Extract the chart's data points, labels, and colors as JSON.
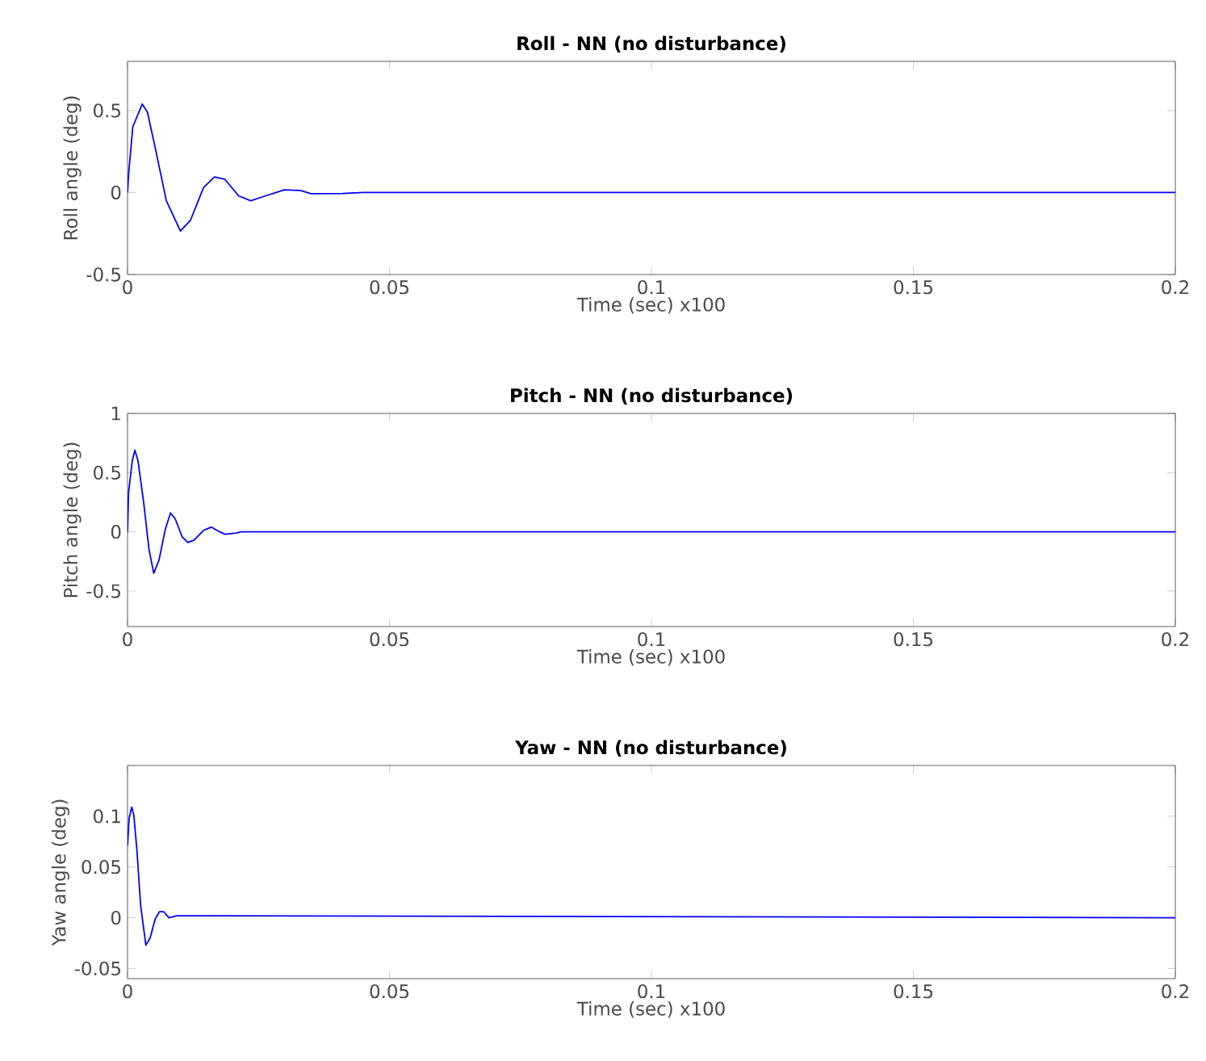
{
  "chart_data": [
    {
      "type": "line",
      "title": "Roll - NN (no disturbance)",
      "xlabel": "Time (sec) x100",
      "ylabel": "Roll angle (deg)",
      "xlim": [
        0,
        0.2
      ],
      "ylim": [
        -0.5,
        0.8
      ],
      "xticks": [
        0,
        0.05,
        0.1,
        0.15,
        0.2
      ],
      "yticks": [
        -0.5,
        0,
        0.5
      ],
      "series": [
        {
          "color": "#0000ff",
          "x": [
            0,
            0.0002,
            0.001,
            0.0028,
            0.0038,
            0.0053,
            0.0074,
            0.0101,
            0.012,
            0.0145,
            0.0166,
            0.0186,
            0.0212,
            0.0235,
            0.0258,
            0.0299,
            0.033,
            0.035,
            0.041,
            0.045,
            0.2
          ],
          "values": [
            0,
            0.11,
            0.4,
            0.54,
            0.49,
            0.27,
            -0.05,
            -0.235,
            -0.17,
            0.03,
            0.095,
            0.08,
            -0.02,
            -0.05,
            -0.026,
            0.016,
            0.013,
            -0.007,
            -0.006,
            0,
            0
          ]
        }
      ]
    },
    {
      "type": "line",
      "title": "Pitch - NN (no disturbance)",
      "xlabel": "Time (sec) x100",
      "ylabel": "Pitch angle (deg)",
      "xlim": [
        0,
        0.2
      ],
      "ylim": [
        -0.8,
        1
      ],
      "xticks": [
        0,
        0.05,
        0.1,
        0.15,
        0.2
      ],
      "yticks": [
        -0.5,
        0,
        0.5,
        1
      ],
      "series": [
        {
          "color": "#0000ff",
          "x": [
            0,
            0.0002,
            0.0009,
            0.0014,
            0.002,
            0.0031,
            0.0041,
            0.005,
            0.006,
            0.0072,
            0.0082,
            0.0091,
            0.0104,
            0.0115,
            0.0127,
            0.0145,
            0.016,
            0.0176,
            0.0186,
            0.0207,
            0.0217,
            0.2
          ],
          "values": [
            0,
            0.33,
            0.6,
            0.69,
            0.6,
            0.24,
            -0.15,
            -0.35,
            -0.24,
            0.02,
            0.16,
            0.11,
            -0.04,
            -0.09,
            -0.07,
            0.013,
            0.04,
            0,
            -0.02,
            -0.01,
            0,
            0
          ]
        }
      ]
    },
    {
      "type": "line",
      "title": "Yaw - NN (no disturbance)",
      "xlabel": "Time (sec) x100",
      "ylabel": "Yaw angle (deg)",
      "xlim": [
        0,
        0.2
      ],
      "ylim": [
        -0.06,
        0.15
      ],
      "xticks": [
        0,
        0.05,
        0.1,
        0.15,
        0.2
      ],
      "yticks": [
        -0.05,
        0,
        0.05,
        0.1
      ],
      "series": [
        {
          "color": "#0000ff",
          "x": [
            0,
            0.0003,
            0.0008,
            0.0012,
            0.0018,
            0.0025,
            0.0035,
            0.0043,
            0.0053,
            0.0061,
            0.0069,
            0.0079,
            0.0094,
            0.2
          ],
          "values": [
            0.071,
            0.098,
            0.109,
            0.101,
            0.066,
            0.012,
            -0.027,
            -0.02,
            -0.001,
            0.006,
            0.006,
            0,
            0.002,
            0
          ]
        }
      ]
    }
  ]
}
